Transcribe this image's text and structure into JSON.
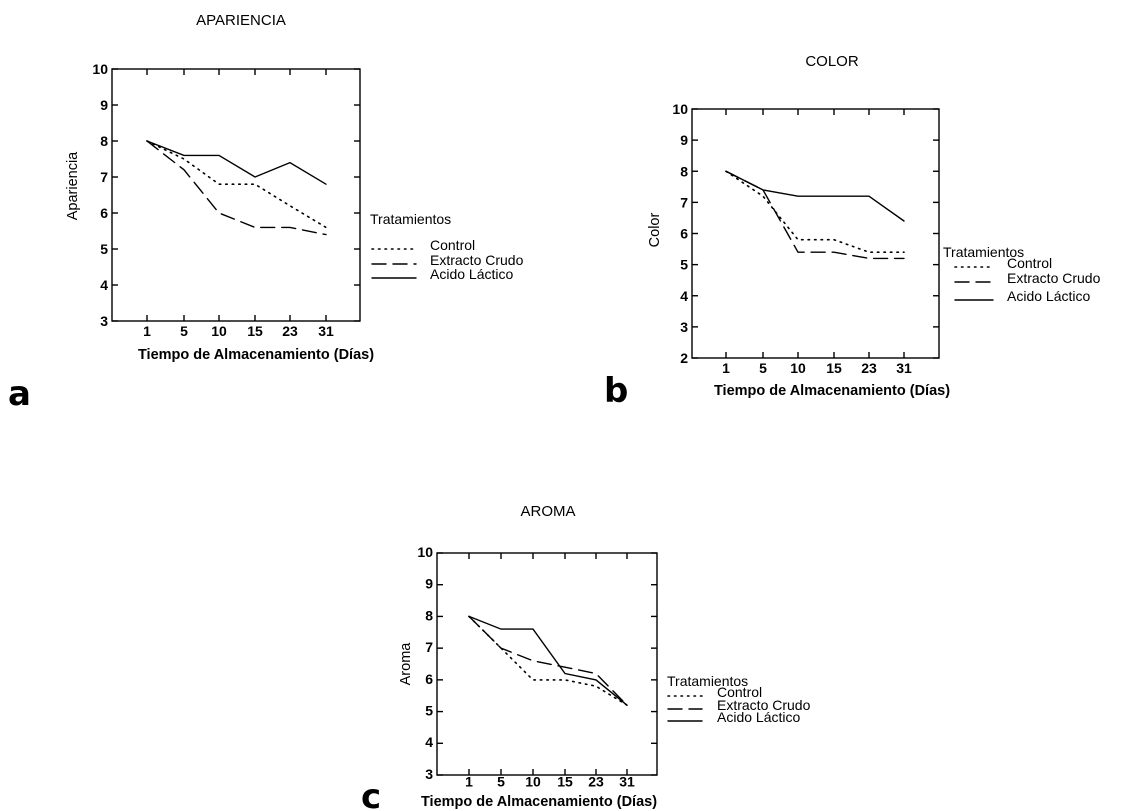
{
  "chart_data": [
    {
      "type": "line",
      "panel_label": "a",
      "title": "APARIENCIA",
      "xlabel": "Tiempo de Almacenamiento (Días)",
      "ylabel": "Apariencia",
      "categories": [
        "1",
        "5",
        "10",
        "15",
        "23",
        "31"
      ],
      "ylim": [
        3,
        10
      ],
      "yticks": [
        "3",
        "4",
        "5",
        "6",
        "7",
        "8",
        "9",
        "10"
      ],
      "legend_title": "Tratamientos",
      "series": [
        {
          "name": "Control",
          "style": "dotted",
          "values": [
            8.0,
            7.5,
            6.8,
            6.8,
            6.2,
            5.6
          ]
        },
        {
          "name": "Extracto Crudo",
          "style": "dashed",
          "values": [
            8.0,
            7.2,
            6.0,
            5.6,
            5.6,
            5.4
          ]
        },
        {
          "name": "Acido Láctico",
          "style": "solid",
          "values": [
            8.0,
            7.6,
            7.6,
            7.0,
            7.4,
            6.8
          ]
        }
      ]
    },
    {
      "type": "line",
      "panel_label": "b",
      "title": "COLOR",
      "xlabel": "Tiempo de Almacenamiento (Días)",
      "ylabel": "Color",
      "categories": [
        "1",
        "5",
        "10",
        "15",
        "23",
        "31"
      ],
      "ylim": [
        2,
        10
      ],
      "yticks": [
        "2",
        "3",
        "4",
        "5",
        "6",
        "7",
        "8",
        "9",
        "10"
      ],
      "legend_title": "Tratamientos",
      "series": [
        {
          "name": "Control",
          "style": "dotted",
          "values": [
            8.0,
            7.2,
            5.8,
            5.8,
            5.4,
            5.4
          ]
        },
        {
          "name": "Extracto Crudo",
          "style": "dashed",
          "values": [
            8.0,
            7.4,
            5.4,
            5.4,
            5.2,
            5.2
          ]
        },
        {
          "name": "Acido Láctico",
          "style": "solid",
          "values": [
            8.0,
            7.4,
            7.2,
            7.2,
            7.2,
            6.4
          ]
        }
      ]
    },
    {
      "type": "line",
      "panel_label": "c",
      "title": "AROMA",
      "xlabel": "Tiempo de Almacenamiento (Días)",
      "ylabel": "Aroma",
      "categories": [
        "1",
        "5",
        "10",
        "15",
        "23",
        "31"
      ],
      "ylim": [
        3,
        10
      ],
      "yticks": [
        "3",
        "4",
        "5",
        "6",
        "7",
        "8",
        "9",
        "10"
      ],
      "legend_title": "Tratamientos",
      "series": [
        {
          "name": "Control",
          "style": "dotted",
          "values": [
            8.0,
            7.0,
            6.0,
            6.0,
            5.8,
            5.2
          ]
        },
        {
          "name": "Extracto Crudo",
          "style": "dashed",
          "values": [
            8.0,
            7.0,
            6.6,
            6.4,
            6.2,
            5.2
          ]
        },
        {
          "name": "Acido Láctico",
          "style": "solid",
          "values": [
            8.0,
            7.6,
            7.6,
            6.2,
            6.0,
            5.2
          ]
        }
      ]
    }
  ]
}
